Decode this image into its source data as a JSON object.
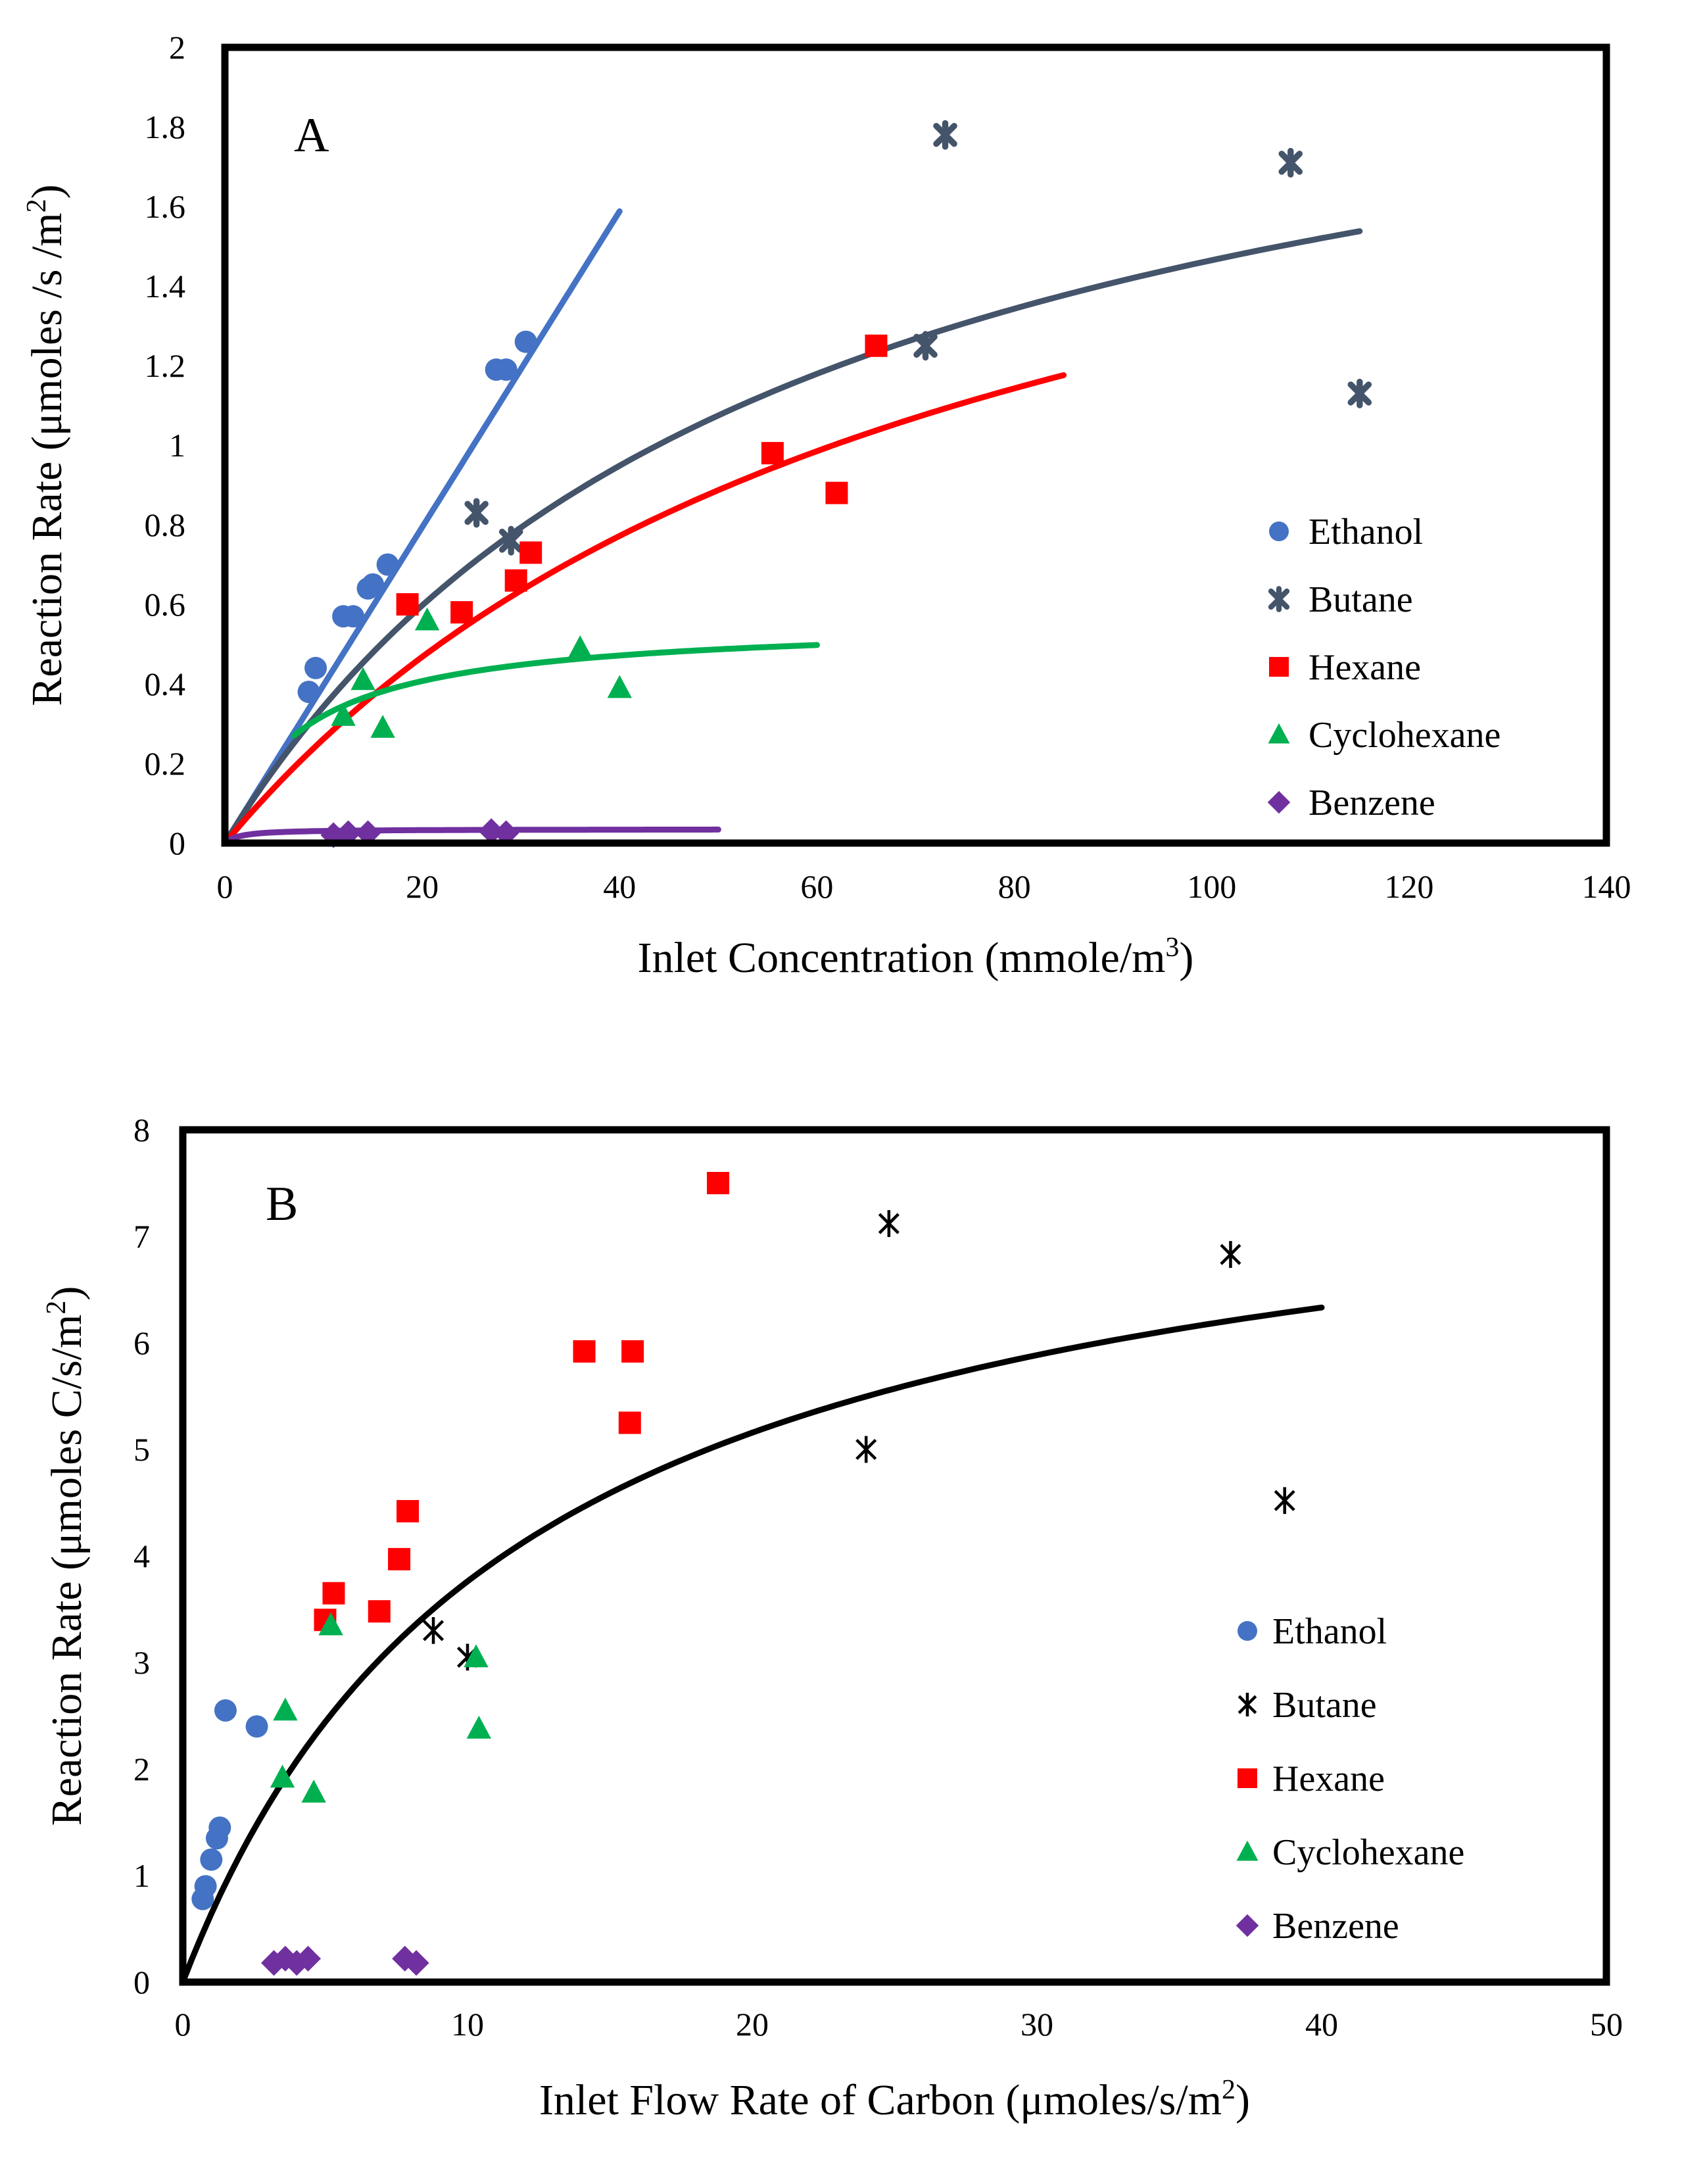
{
  "chart_data": [
    {
      "type": "scatter",
      "panel_label": "A",
      "xlabel": "Inlet  Concentration (mmole/m",
      "xlabel_sup": "3",
      "xlabel_end": ")",
      "ylabel": "Reaction Rate (μmoles /s /m",
      "ylabel_sup": "2",
      "ylabel_end": ")",
      "xlim": [
        0,
        140
      ],
      "ylim": [
        0,
        2
      ],
      "xticks": [
        0,
        20,
        40,
        60,
        80,
        100,
        120,
        140
      ],
      "yticks": [
        0,
        0.2,
        0.4,
        0.6,
        0.8,
        1,
        1.2,
        1.4,
        1.6,
        1.8,
        2
      ],
      "ytick_labels": [
        "0",
        "0.2",
        "0.4",
        "0.6",
        "0.8",
        "1",
        "1.2",
        "1.4",
        "1.6",
        "1.8",
        "2"
      ],
      "legend_position": "center-right",
      "series": [
        {
          "name": "Ethanol",
          "marker": "circle",
          "color": "#4472C4",
          "points": [
            [
              8.5,
              0.38
            ],
            [
              9.2,
              0.44
            ],
            [
              12,
              0.57
            ],
            [
              13,
              0.57
            ],
            [
              14.5,
              0.64
            ],
            [
              15,
              0.65
            ],
            [
              16.5,
              0.7
            ],
            [
              27.5,
              1.19
            ],
            [
              28.5,
              1.19
            ],
            [
              30.5,
              1.26
            ]
          ],
          "fit": {
            "kind": "linear",
            "slope": 0.0397,
            "x_range": [
              0,
              40
            ]
          }
        },
        {
          "name": "Butane",
          "marker": "star",
          "color": "#44546A",
          "points": [
            [
              25.5,
              0.83
            ],
            [
              29,
              0.76
            ],
            [
              71,
              1.25
            ],
            [
              73,
              1.78
            ],
            [
              108,
              1.71
            ],
            [
              115,
              1.13
            ]
          ],
          "fit": {
            "kind": "saturation",
            "vmax": 2.3,
            "k": 57,
            "x_range": [
              0,
              115
            ]
          }
        },
        {
          "name": "Hexane",
          "marker": "square",
          "color": "#FF0000",
          "points": [
            [
              18.5,
              0.6
            ],
            [
              24,
              0.58
            ],
            [
              29.5,
              0.66
            ],
            [
              31,
              0.73
            ],
            [
              55.5,
              0.98
            ],
            [
              62,
              0.88
            ],
            [
              66,
              1.25
            ]
          ],
          "fit": {
            "kind": "saturation",
            "vmax": 2.2,
            "k": 74,
            "x_range": [
              0,
              85
            ]
          }
        },
        {
          "name": "Cyclohexane",
          "marker": "triangle",
          "color": "#00B050",
          "points": [
            [
              12,
              0.32
            ],
            [
              14,
              0.41
            ],
            [
              16,
              0.29
            ],
            [
              20.5,
              0.56
            ],
            [
              36,
              0.49
            ],
            [
              40,
              0.39
            ]
          ],
          "fit": {
            "kind": "saturation",
            "vmax": 0.56,
            "k": 7.5,
            "x_range": [
              7,
              60
            ]
          }
        },
        {
          "name": "Benzene",
          "marker": "diamond",
          "color": "#7030A0",
          "points": [
            [
              11,
              0.02
            ],
            [
              12.5,
              0.025
            ],
            [
              14.5,
              0.025
            ],
            [
              27,
              0.03
            ],
            [
              28.5,
              0.025
            ]
          ],
          "fit": {
            "kind": "saturation",
            "vmax": 0.035,
            "k": 1.5,
            "x_range": [
              0,
              50
            ]
          }
        }
      ]
    },
    {
      "type": "scatter",
      "panel_label": "B",
      "xlabel": "Inlet  Flow Rate of Carbon (μmoles/s/m",
      "xlabel_sup": "2",
      "xlabel_end": ")",
      "ylabel": "Reaction Rate (μmoles C/s/m",
      "ylabel_sup": "2",
      "ylabel_end": ")",
      "xlim": [
        0,
        50
      ],
      "ylim": [
        0,
        8
      ],
      "xticks": [
        0,
        10,
        20,
        30,
        40,
        50
      ],
      "yticks": [
        0,
        1,
        2,
        3,
        4,
        5,
        6,
        7,
        8
      ],
      "ytick_labels": [
        "0",
        "1",
        "2",
        "3",
        "4",
        "5",
        "6",
        "7",
        "8"
      ],
      "legend_position": "bottom-right",
      "fit": {
        "kind": "saturation",
        "vmax": 8.2,
        "k": 11.8,
        "x_range": [
          0,
          40
        ]
      },
      "series": [
        {
          "name": "Ethanol",
          "marker": "circle",
          "color": "#4472C4",
          "points": [
            [
              0.7,
              0.78
            ],
            [
              0.8,
              0.9
            ],
            [
              1.0,
              1.15
            ],
            [
              1.2,
              1.35
            ],
            [
              1.3,
              1.45
            ],
            [
              1.5,
              2.55
            ],
            [
              2.6,
              2.4
            ]
          ]
        },
        {
          "name": "Butane",
          "marker": "asterisk",
          "color": "#000000",
          "points": [
            [
              8.8,
              3.3
            ],
            [
              10,
              3.05
            ],
            [
              24,
              5.0
            ],
            [
              24.8,
              7.12
            ],
            [
              36.8,
              6.83
            ],
            [
              38.7,
              4.52
            ]
          ]
        },
        {
          "name": "Hexane",
          "marker": "square",
          "color": "#FF0000",
          "points": [
            [
              5.0,
              3.4
            ],
            [
              5.3,
              3.65
            ],
            [
              6.9,
              3.48
            ],
            [
              7.6,
              3.97
            ],
            [
              7.9,
              4.42
            ],
            [
              14.1,
              5.92
            ],
            [
              15.7,
              5.25
            ],
            [
              15.8,
              5.92
            ],
            [
              18.8,
              7.5
            ]
          ]
        },
        {
          "name": "Cyclohexane",
          "marker": "triangle",
          "color": "#00B050",
          "points": [
            [
              3.5,
              1.92
            ],
            [
              3.6,
              2.55
            ],
            [
              4.6,
              1.78
            ],
            [
              5.2,
              3.35
            ],
            [
              10.3,
              3.05
            ],
            [
              10.4,
              2.38
            ]
          ]
        },
        {
          "name": "Benzene",
          "marker": "diamond",
          "color": "#7030A0",
          "points": [
            [
              3.2,
              0.18
            ],
            [
              3.6,
              0.22
            ],
            [
              4.0,
              0.18
            ],
            [
              4.4,
              0.22
            ],
            [
              7.8,
              0.22
            ],
            [
              8.2,
              0.18
            ]
          ]
        }
      ]
    }
  ]
}
